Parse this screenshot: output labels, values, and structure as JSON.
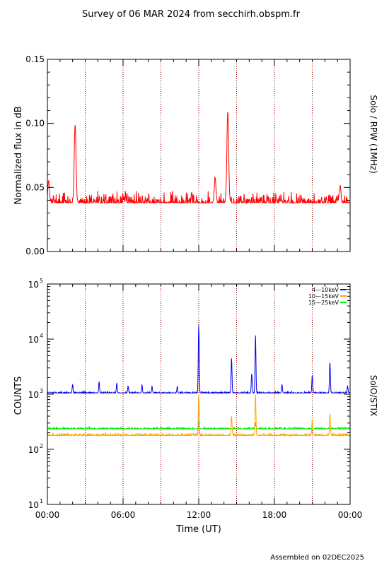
{
  "page": {
    "title": "Survey of 06 MAR 2024 from secchirh.obspm.fr",
    "footer": "Assembled on 02DEC2025"
  },
  "colors": {
    "rpw": "#ff0000",
    "stix_low": "#0000ee",
    "stix_mid": "#ffa500",
    "stix_high": "#00ee00",
    "guide": "#8b0000"
  },
  "chart_data": [
    {
      "id": "rpw",
      "type": "line",
      "title": "",
      "ylabel": "Normalized flux in dB",
      "right_label": "Solo / RPW (1MHz)",
      "ylim": [
        0,
        0.15
      ],
      "xlim_hours": [
        0,
        24
      ],
      "y_ticks": [
        {
          "v": 0.0,
          "label": "0.00"
        },
        {
          "v": 0.05,
          "label": "0.05"
        },
        {
          "v": 0.1,
          "label": "0.10"
        },
        {
          "v": 0.15,
          "label": "0.15"
        }
      ],
      "guide_hours": [
        3,
        6,
        9,
        12,
        15,
        18,
        21
      ],
      "series": [
        {
          "name": "",
          "color_key": "rpw",
          "baseline": 0.038,
          "noise": 0.011,
          "peaks": [
            {
              "t": 2.2,
              "v": 0.1
            },
            {
              "t": 14.3,
              "v": 0.11
            },
            {
              "t": 13.3,
              "v": 0.057
            },
            {
              "t": 23.2,
              "v": 0.051
            },
            {
              "t": 0.1,
              "v": 0.055
            }
          ]
        }
      ]
    },
    {
      "id": "stix",
      "type": "line",
      "title": "",
      "ylabel": "COUNTS",
      "right_label": "SolO/STIX",
      "xlabel": "Time (UT)",
      "yscale": "log",
      "ylim": [
        10,
        100000
      ],
      "xlim_hours": [
        0,
        24
      ],
      "y_ticks": [
        {
          "v": 10,
          "base": "10",
          "exp": "1"
        },
        {
          "v": 100,
          "base": "10",
          "exp": "2"
        },
        {
          "v": 1000,
          "base": "10",
          "exp": "3"
        },
        {
          "v": 10000,
          "base": "10",
          "exp": "4"
        },
        {
          "v": 100000,
          "base": "10",
          "exp": "5"
        }
      ],
      "x_ticks": [
        {
          "v": 0,
          "label": "00:00"
        },
        {
          "v": 6,
          "label": "06:00"
        },
        {
          "v": 12,
          "label": "12:00"
        },
        {
          "v": 18,
          "label": "18:00"
        },
        {
          "v": 24,
          "label": "00:00"
        }
      ],
      "guide_hours": [
        3,
        6,
        9,
        12,
        15,
        18,
        21
      ],
      "series": [
        {
          "name": "4—10keV",
          "color_key": "stix_low",
          "baseline": 1050,
          "noise": 0.035,
          "peaks": [
            {
              "t": 2.0,
              "v": 1500
            },
            {
              "t": 4.1,
              "v": 1700
            },
            {
              "t": 5.5,
              "v": 1600
            },
            {
              "t": 6.4,
              "v": 1400
            },
            {
              "t": 7.5,
              "v": 1500
            },
            {
              "t": 8.3,
              "v": 1400
            },
            {
              "t": 10.3,
              "v": 1400
            },
            {
              "t": 12.0,
              "v": 18000
            },
            {
              "t": 14.6,
              "v": 4500
            },
            {
              "t": 16.2,
              "v": 2400
            },
            {
              "t": 16.5,
              "v": 12000
            },
            {
              "t": 18.6,
              "v": 1500
            },
            {
              "t": 21.0,
              "v": 2200
            },
            {
              "t": 22.4,
              "v": 3800
            },
            {
              "t": 23.8,
              "v": 1400
            }
          ]
        },
        {
          "name": "10—15keV",
          "color_key": "stix_mid",
          "baseline": 178,
          "noise": 0.06,
          "peaks": [
            {
              "t": 12.0,
              "v": 1000
            },
            {
              "t": 14.6,
              "v": 400
            },
            {
              "t": 16.5,
              "v": 1000
            },
            {
              "t": 21.0,
              "v": 350
            },
            {
              "t": 22.4,
              "v": 450
            }
          ]
        },
        {
          "name": "15—25keV",
          "color_key": "stix_high",
          "baseline": 235,
          "noise": 0.045,
          "peaks": [
            {
              "t": 12.0,
              "v": 320
            },
            {
              "t": 16.5,
              "v": 300
            }
          ]
        }
      ]
    }
  ]
}
